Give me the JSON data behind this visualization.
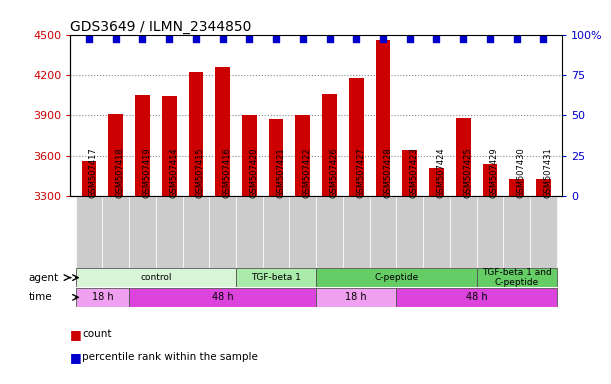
{
  "title": "GDS3649 / ILMN_2344850",
  "samples": [
    "GSM507417",
    "GSM507418",
    "GSM507419",
    "GSM507414",
    "GSM507415",
    "GSM507416",
    "GSM507420",
    "GSM507421",
    "GSM507422",
    "GSM507426",
    "GSM507427",
    "GSM507428",
    "GSM507423",
    "GSM507424",
    "GSM507425",
    "GSM507429",
    "GSM507430",
    "GSM507431"
  ],
  "counts": [
    3560,
    3910,
    4050,
    4040,
    4220,
    4260,
    3900,
    3870,
    3900,
    4060,
    4180,
    4460,
    3640,
    3510,
    3880,
    3540,
    3430,
    3430
  ],
  "percentile_rank": [
    100,
    100,
    100,
    100,
    100,
    100,
    100,
    100,
    100,
    100,
    100,
    100,
    100,
    100,
    100,
    100,
    100,
    100
  ],
  "ylim": [
    3300,
    4500
  ],
  "yticks": [
    3300,
    3600,
    3900,
    4200,
    4500
  ],
  "right_yticks": [
    0,
    25,
    50,
    75,
    100
  ],
  "right_ylim": [
    0,
    100
  ],
  "bar_color": "#cc0000",
  "dot_color": "#0000cc",
  "bar_width": 0.55,
  "agent_groups": [
    {
      "label": "control",
      "start": 0,
      "end": 5,
      "color": "#d8f5d8"
    },
    {
      "label": "TGF-beta 1",
      "start": 6,
      "end": 8,
      "color": "#aaeaaa"
    },
    {
      "label": "C-peptide",
      "start": 9,
      "end": 14,
      "color": "#66cc66"
    },
    {
      "label": "TGF-beta 1 and\nC-peptide",
      "start": 15,
      "end": 17,
      "color": "#66cc66"
    }
  ],
  "time_groups": [
    {
      "label": "18 h",
      "start": 0,
      "end": 1,
      "color": "#f0a0f0"
    },
    {
      "label": "48 h",
      "start": 2,
      "end": 8,
      "color": "#dd44dd"
    },
    {
      "label": "18 h",
      "start": 9,
      "end": 11,
      "color": "#f0a0f0"
    },
    {
      "label": "48 h",
      "start": 12,
      "end": 17,
      "color": "#dd44dd"
    }
  ],
  "grid_color": "#888888",
  "sample_bg_color": "#cccccc",
  "left_label_color": "#cc0000",
  "right_label_color": "#0000cc"
}
